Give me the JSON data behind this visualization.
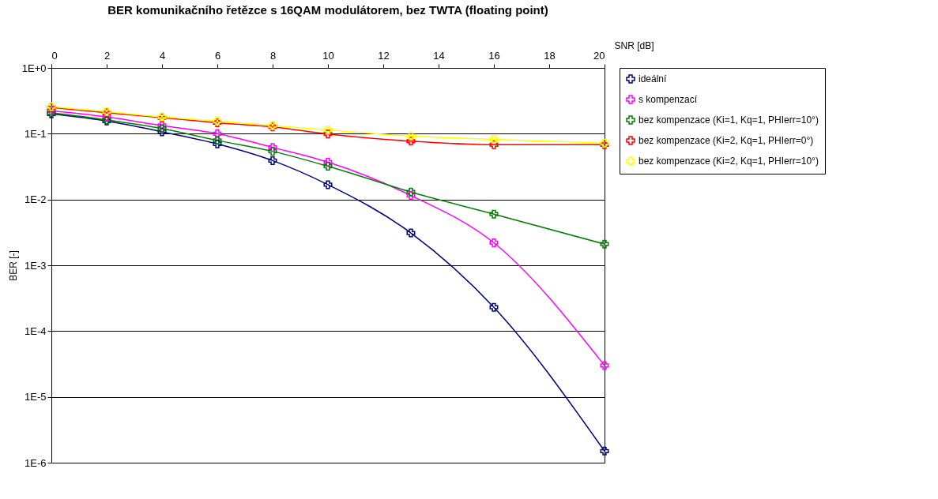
{
  "chart_data": {
    "type": "line",
    "title": "BER komunikačního řetězce s 16QAM modulátorem, bez TWTA (floating point)",
    "xlabel": "SNR [dB]",
    "ylabel": "BER [-]",
    "log": "y",
    "grid": "y",
    "legend": "right",
    "marker": "cross",
    "line_style": "solid",
    "x": [
      0,
      2,
      4,
      6,
      8,
      10,
      13,
      16,
      20
    ],
    "xlim": [
      0,
      20
    ],
    "xticks": [
      0,
      2,
      4,
      6,
      8,
      10,
      12,
      14,
      16,
      18,
      20
    ],
    "ylim": [
      1e-06,
      1
    ],
    "yticks": [
      {
        "value": 1,
        "label": "1E+0"
      },
      {
        "value": 0.1,
        "label": "1E-1"
      },
      {
        "value": 0.01,
        "label": "1E-2"
      },
      {
        "value": 0.001,
        "label": "1E-3"
      },
      {
        "value": 0.0001,
        "label": "1E-4"
      },
      {
        "value": 1e-05,
        "label": "1E-5"
      },
      {
        "value": 1e-06,
        "label": "1E-6"
      }
    ],
    "series": [
      {
        "name": "ideální",
        "color": "#000080",
        "values": [
          0.2,
          0.156,
          0.107,
          0.07,
          0.039,
          0.0168,
          0.0031,
          0.00023,
          1.5e-06
        ]
      },
      {
        "name": "s kompenzací",
        "color": "#ff00ff",
        "values": [
          0.224,
          0.18,
          0.133,
          0.1,
          0.062,
          0.037,
          0.0115,
          0.0022,
          3e-05
        ]
      },
      {
        "name": "bez kompenzace (Ki=1, Kq=1, PHIerr=10°)",
        "color": "#008000",
        "values": [
          0.208,
          0.162,
          0.12,
          0.079,
          0.054,
          0.032,
          0.013,
          0.006,
          0.0021
        ]
      },
      {
        "name": "bez kompenzace (Ki=2, Kq=1, PHIerr=0°)",
        "color": "#ff0000",
        "values": [
          0.25,
          0.208,
          0.175,
          0.147,
          0.127,
          0.099,
          0.077,
          0.068,
          0.068
        ]
      },
      {
        "name": "bez kompenzace (Ki=2, Kq=1, PHIerr=10°)",
        "color": "#ffff00",
        "values": [
          0.258,
          0.217,
          0.18,
          0.156,
          0.133,
          0.114,
          0.092,
          0.082,
          0.072
        ]
      }
    ]
  }
}
